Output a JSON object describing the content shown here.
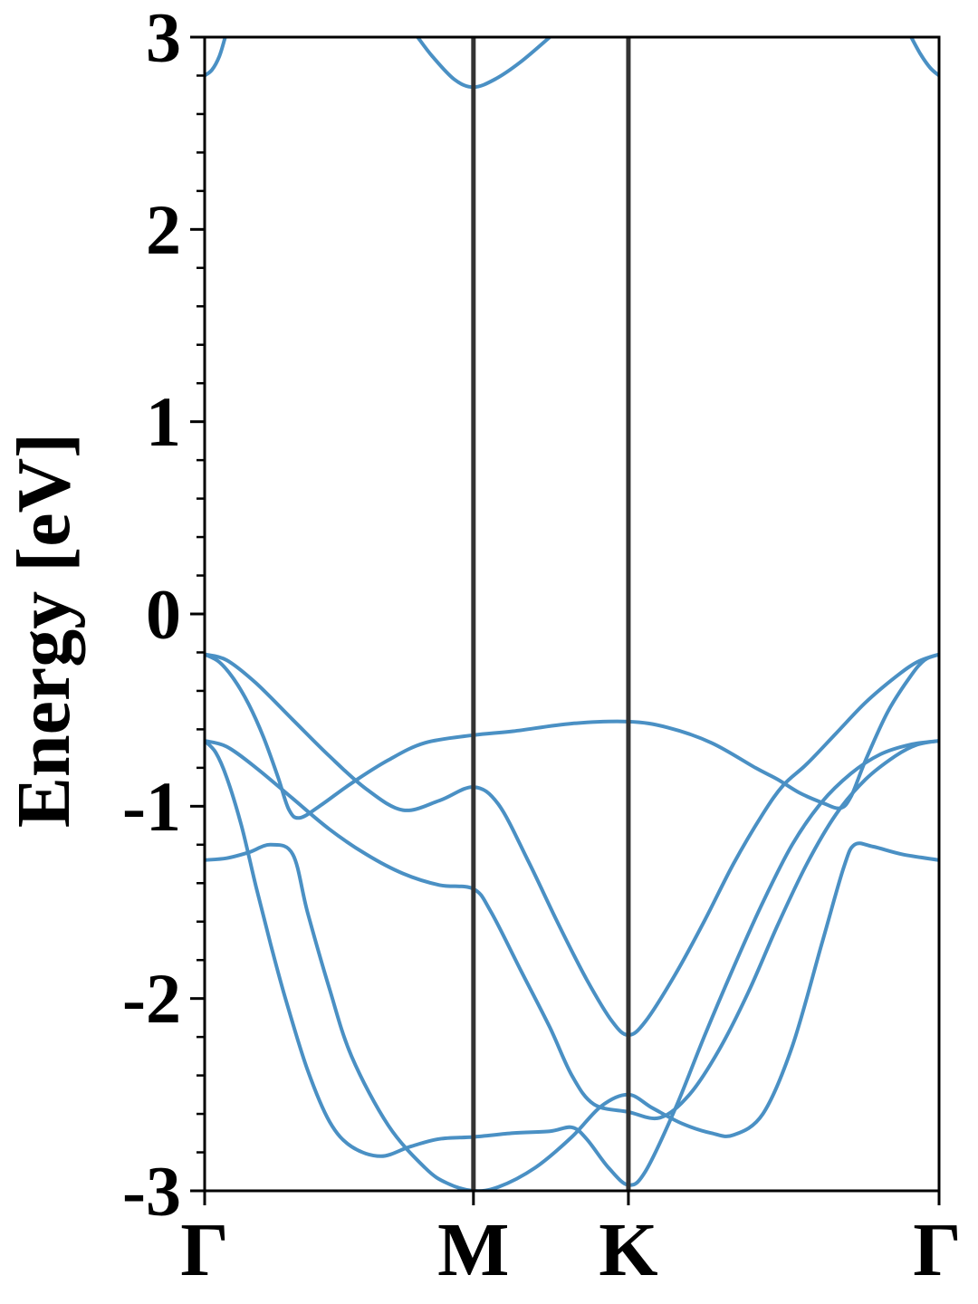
{
  "chart_data": {
    "type": "line",
    "title": "",
    "ylabel": "Energy [eV]",
    "xlabel": "",
    "ylim": [
      -3,
      3
    ],
    "y_major_ticks": [
      {
        "value": 3,
        "label": "3"
      },
      {
        "value": 2,
        "label": "2"
      },
      {
        "value": 1,
        "label": "1"
      },
      {
        "value": 0,
        "label": "0"
      },
      {
        "value": -1,
        "label": "-1"
      },
      {
        "value": -2,
        "label": "-2"
      },
      {
        "value": -3,
        "label": "-3"
      }
    ],
    "y_minor_step": 0.2,
    "k_path": [
      {
        "label": "Γ",
        "position": 0.0
      },
      {
        "label": "M",
        "position": 0.366
      },
      {
        "label": "K",
        "position": 0.577
      },
      {
        "label": "Γ",
        "position": 1.0
      }
    ],
    "grid": false,
    "line_color": "#4a90c4",
    "divider_color": "#333333",
    "series": [
      {
        "values": [
          [
            0,
            2.8
          ],
          [
            0.01,
            2.83
          ],
          [
            0.02,
            2.9
          ],
          [
            0.028,
            3.0
          ]
        ]
      },
      {
        "values": [
          [
            0.29,
            3.0
          ],
          [
            0.31,
            2.9
          ],
          [
            0.34,
            2.78
          ],
          [
            0.366,
            2.74
          ],
          [
            0.395,
            2.78
          ],
          [
            0.43,
            2.87
          ],
          [
            0.47,
            3.0
          ]
        ]
      },
      {
        "values": [
          [
            0.962,
            3.0
          ],
          [
            0.975,
            2.91
          ],
          [
            0.988,
            2.84
          ],
          [
            1.0,
            2.8
          ]
        ]
      },
      {
        "values": [
          [
            0,
            -0.21
          ],
          [
            0.03,
            -0.24
          ],
          [
            0.07,
            -0.36
          ],
          [
            0.12,
            -0.55
          ],
          [
            0.17,
            -0.74
          ],
          [
            0.22,
            -0.91
          ],
          [
            0.27,
            -1.02
          ],
          [
            0.32,
            -0.97
          ],
          [
            0.366,
            -0.9
          ],
          [
            0.4,
            -0.99
          ],
          [
            0.44,
            -1.28
          ],
          [
            0.48,
            -1.6
          ],
          [
            0.52,
            -1.9
          ],
          [
            0.555,
            -2.12
          ],
          [
            0.577,
            -2.19
          ],
          [
            0.6,
            -2.12
          ],
          [
            0.64,
            -1.88
          ],
          [
            0.68,
            -1.6
          ],
          [
            0.72,
            -1.3
          ],
          [
            0.76,
            -1.04
          ],
          [
            0.788,
            -0.89
          ],
          [
            0.82,
            -0.78
          ],
          [
            0.86,
            -0.62
          ],
          [
            0.9,
            -0.46
          ],
          [
            0.94,
            -0.33
          ],
          [
            0.97,
            -0.25
          ],
          [
            1.0,
            -0.21
          ]
        ]
      },
      {
        "values": [
          [
            0,
            -0.21
          ],
          [
            0.02,
            -0.25
          ],
          [
            0.04,
            -0.34
          ],
          [
            0.06,
            -0.47
          ],
          [
            0.08,
            -0.64
          ],
          [
            0.1,
            -0.85
          ],
          [
            0.115,
            -1.02
          ],
          [
            0.13,
            -1.06
          ],
          [
            0.16,
            -0.99
          ],
          [
            0.2,
            -0.88
          ],
          [
            0.25,
            -0.76
          ],
          [
            0.3,
            -0.67
          ],
          [
            0.366,
            -0.63
          ],
          [
            0.42,
            -0.61
          ],
          [
            0.5,
            -0.57
          ],
          [
            0.577,
            -0.56
          ],
          [
            0.63,
            -0.59
          ],
          [
            0.69,
            -0.67
          ],
          [
            0.75,
            -0.8
          ],
          [
            0.78,
            -0.86
          ],
          [
            0.81,
            -0.93
          ],
          [
            0.84,
            -0.98
          ],
          [
            0.865,
            -1.01
          ],
          [
            0.88,
            -0.95
          ],
          [
            0.9,
            -0.76
          ],
          [
            0.93,
            -0.51
          ],
          [
            0.96,
            -0.33
          ],
          [
            0.98,
            -0.24
          ],
          [
            1.0,
            -0.21
          ]
        ]
      },
      {
        "values": [
          [
            0,
            -0.66
          ],
          [
            0.03,
            -0.69
          ],
          [
            0.07,
            -0.8
          ],
          [
            0.12,
            -0.96
          ],
          [
            0.17,
            -1.12
          ],
          [
            0.22,
            -1.25
          ],
          [
            0.27,
            -1.35
          ],
          [
            0.32,
            -1.41
          ],
          [
            0.366,
            -1.43
          ],
          [
            0.39,
            -1.55
          ],
          [
            0.43,
            -1.85
          ],
          [
            0.47,
            -2.15
          ],
          [
            0.5,
            -2.4
          ],
          [
            0.53,
            -2.55
          ],
          [
            0.577,
            -2.59
          ],
          [
            0.62,
            -2.62
          ],
          [
            0.66,
            -2.5
          ],
          [
            0.7,
            -2.27
          ],
          [
            0.74,
            -1.97
          ],
          [
            0.78,
            -1.62
          ],
          [
            0.82,
            -1.3
          ],
          [
            0.86,
            -1.04
          ],
          [
            0.9,
            -0.86
          ],
          [
            0.94,
            -0.74
          ],
          [
            0.97,
            -0.68
          ],
          [
            1.0,
            -0.66
          ]
        ]
      },
      {
        "values": [
          [
            0,
            -0.66
          ],
          [
            0.015,
            -0.72
          ],
          [
            0.03,
            -0.85
          ],
          [
            0.05,
            -1.1
          ],
          [
            0.07,
            -1.42
          ],
          [
            0.09,
            -1.72
          ],
          [
            0.11,
            -2.0
          ],
          [
            0.14,
            -2.37
          ],
          [
            0.17,
            -2.64
          ],
          [
            0.2,
            -2.77
          ],
          [
            0.24,
            -2.82
          ],
          [
            0.28,
            -2.77
          ],
          [
            0.32,
            -2.73
          ],
          [
            0.366,
            -2.72
          ],
          [
            0.42,
            -2.7
          ],
          [
            0.47,
            -2.69
          ],
          [
            0.5,
            -2.67
          ],
          [
            0.52,
            -2.73
          ],
          [
            0.55,
            -2.88
          ],
          [
            0.577,
            -2.97
          ],
          [
            0.6,
            -2.9
          ],
          [
            0.64,
            -2.58
          ],
          [
            0.68,
            -2.2
          ],
          [
            0.72,
            -1.84
          ],
          [
            0.76,
            -1.5
          ],
          [
            0.8,
            -1.2
          ],
          [
            0.84,
            -0.98
          ],
          [
            0.88,
            -0.83
          ],
          [
            0.92,
            -0.73
          ],
          [
            0.96,
            -0.68
          ],
          [
            1.0,
            -0.66
          ]
        ]
      },
      {
        "values": [
          [
            0,
            -1.28
          ],
          [
            0.03,
            -1.27
          ],
          [
            0.06,
            -1.24
          ],
          [
            0.09,
            -1.2
          ],
          [
            0.12,
            -1.25
          ],
          [
            0.14,
            -1.55
          ],
          [
            0.17,
            -1.95
          ],
          [
            0.2,
            -2.3
          ],
          [
            0.25,
            -2.66
          ],
          [
            0.3,
            -2.88
          ],
          [
            0.33,
            -2.96
          ],
          [
            0.366,
            -3.0
          ],
          [
            0.4,
            -2.98
          ],
          [
            0.45,
            -2.88
          ],
          [
            0.5,
            -2.72
          ],
          [
            0.54,
            -2.56
          ],
          [
            0.577,
            -2.5
          ],
          [
            0.61,
            -2.57
          ],
          [
            0.65,
            -2.65
          ],
          [
            0.69,
            -2.7
          ],
          [
            0.72,
            -2.71
          ],
          [
            0.76,
            -2.6
          ],
          [
            0.8,
            -2.25
          ],
          [
            0.84,
            -1.72
          ],
          [
            0.87,
            -1.32
          ],
          [
            0.885,
            -1.2
          ],
          [
            0.91,
            -1.21
          ],
          [
            0.95,
            -1.25
          ],
          [
            1.0,
            -1.28
          ]
        ]
      }
    ]
  }
}
